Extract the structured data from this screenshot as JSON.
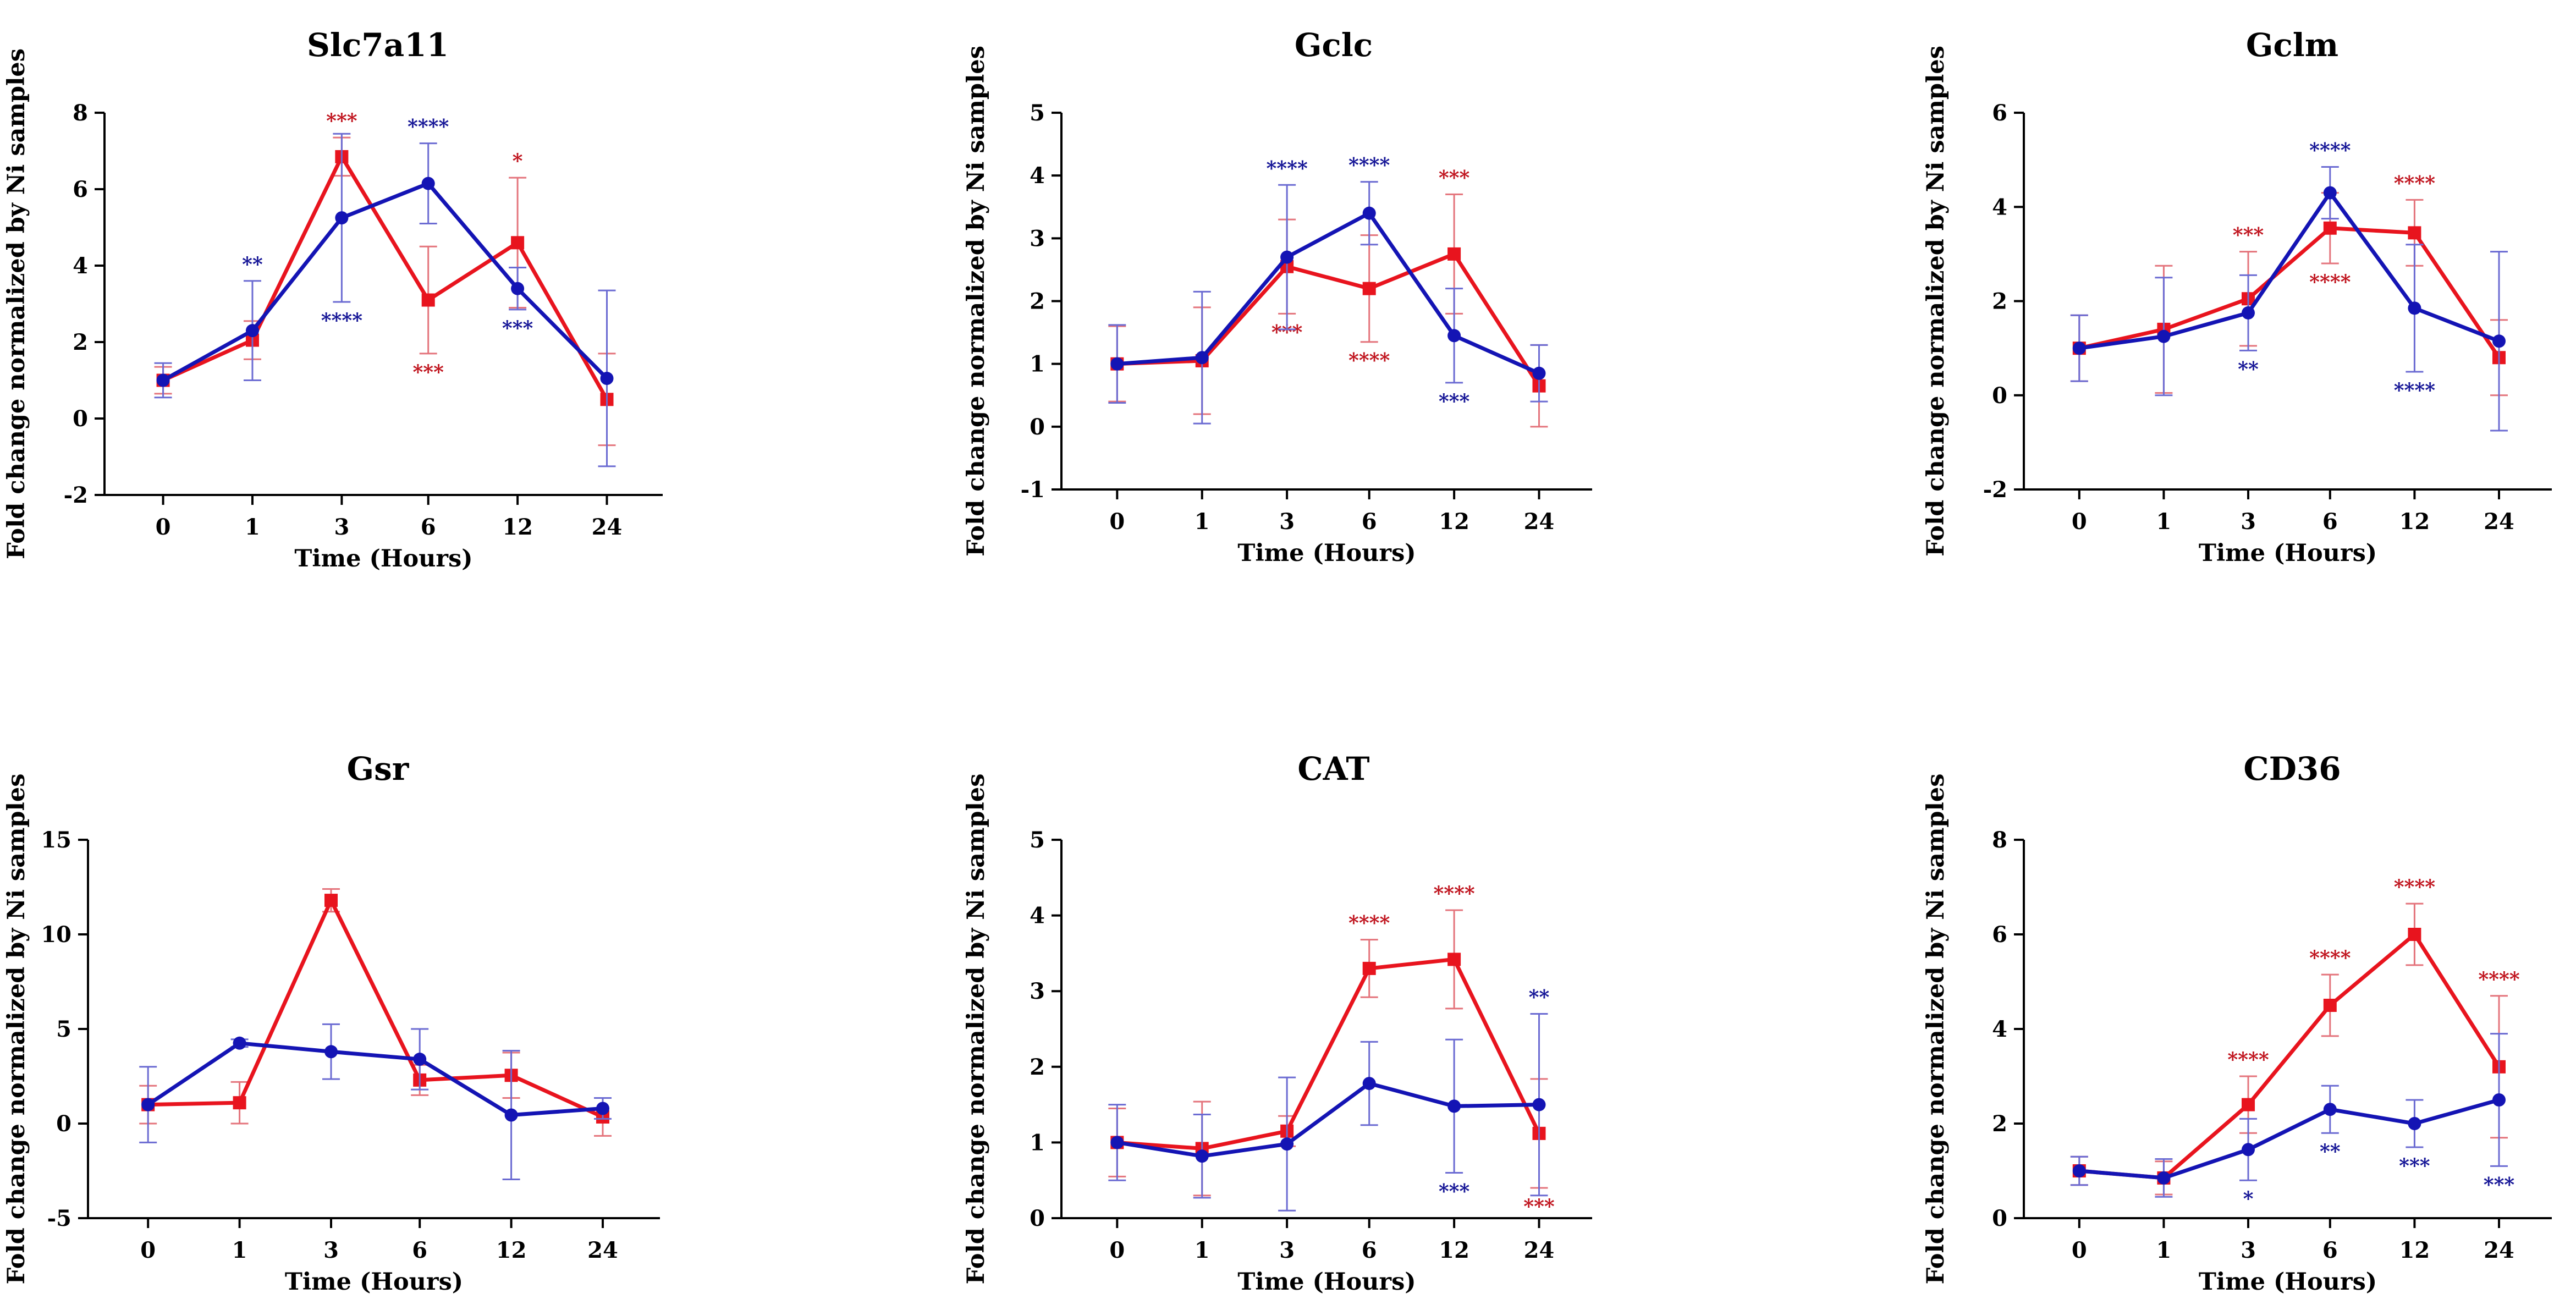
{
  "chart_data": [
    {
      "type": "line",
      "title": "Slc7a11",
      "xlabel": "Time (Hours)",
      "ylabel": "Fold change normalized by Ni samples",
      "categories": [
        "0",
        "1",
        "3",
        "6",
        "12",
        "24"
      ],
      "ylim": [
        -2,
        8
      ],
      "yticks": [
        -2,
        0,
        2,
        4,
        6,
        8
      ],
      "series": [
        {
          "name": "red",
          "marker": "square",
          "color": "#e8141e",
          "values": [
            1.0,
            2.05,
            6.85,
            3.1,
            4.6,
            0.5
          ],
          "errors": [
            0.35,
            0.5,
            0.5,
            1.4,
            1.7,
            1.2
          ],
          "sig": [
            "",
            "",
            "***",
            "***",
            "*",
            ""
          ],
          "sig_pos": [
            "",
            "",
            "above",
            "below",
            "above",
            ""
          ]
        },
        {
          "name": "blue",
          "marker": "circle",
          "color": "#1414b4",
          "values": [
            1.0,
            2.3,
            5.25,
            6.15,
            3.4,
            1.05
          ],
          "errors": [
            0.45,
            1.3,
            2.2,
            1.05,
            0.55,
            2.3
          ],
          "sig": [
            "",
            "**",
            "****",
            "****",
            "***",
            ""
          ],
          "sig_pos": [
            "",
            "above",
            "below",
            "above",
            "below",
            ""
          ]
        }
      ]
    },
    {
      "type": "line",
      "title": "Gclc",
      "xlabel": "Time (Hours)",
      "ylabel": "Fold change normalized by Ni samples",
      "categories": [
        "0",
        "1",
        "3",
        "6",
        "12",
        "24"
      ],
      "ylim": [
        -1,
        5
      ],
      "yticks": [
        -1,
        0,
        1,
        2,
        3,
        4,
        5
      ],
      "series": [
        {
          "name": "red",
          "marker": "square",
          "color": "#e8141e",
          "values": [
            1.0,
            1.05,
            2.55,
            2.2,
            2.75,
            0.65
          ],
          "errors": [
            0.6,
            0.85,
            0.75,
            0.85,
            0.95,
            0.65
          ],
          "sig": [
            "",
            "",
            "***",
            "****",
            "***",
            ""
          ],
          "sig_pos": [
            "",
            "",
            "below",
            "below",
            "above",
            ""
          ]
        },
        {
          "name": "blue",
          "marker": "circle",
          "color": "#1414b4",
          "values": [
            1.0,
            1.1,
            2.7,
            3.4,
            1.45,
            0.85
          ],
          "errors": [
            0.62,
            1.05,
            1.15,
            0.5,
            0.75,
            0.45
          ],
          "sig": [
            "",
            "",
            "****",
            "****",
            "***",
            ""
          ],
          "sig_pos": [
            "",
            "",
            "above",
            "above",
            "below",
            ""
          ]
        }
      ]
    },
    {
      "type": "line",
      "title": "Gclm",
      "xlabel": "Time (Hours)",
      "ylabel": "Fold change normalized by Ni samples",
      "categories": [
        "0",
        "1",
        "3",
        "6",
        "12",
        "24"
      ],
      "ylim": [
        -2,
        6
      ],
      "yticks": [
        -2,
        0,
        2,
        4,
        6
      ],
      "series": [
        {
          "name": "red",
          "marker": "square",
          "color": "#e8141e",
          "values": [
            1.0,
            1.4,
            2.05,
            3.55,
            3.45,
            0.8
          ],
          "errors": [
            0.7,
            1.35,
            1.0,
            0.75,
            0.7,
            0.8
          ],
          "sig": [
            "",
            "",
            "***",
            "****",
            "****",
            ""
          ],
          "sig_pos": [
            "",
            "",
            "above",
            "below",
            "above",
            ""
          ]
        },
        {
          "name": "blue",
          "marker": "circle",
          "color": "#1414b4",
          "values": [
            1.0,
            1.25,
            1.75,
            4.3,
            1.85,
            1.15
          ],
          "errors": [
            0.7,
            1.25,
            0.8,
            0.55,
            1.35,
            1.9
          ],
          "sig": [
            "",
            "",
            "**",
            "****",
            "****",
            ""
          ],
          "sig_pos": [
            "",
            "",
            "below",
            "above",
            "below",
            ""
          ]
        }
      ]
    },
    {
      "type": "line",
      "title": "Gsr",
      "xlabel": "Time (Hours)",
      "ylabel": "Fold change normalized by Ni samples",
      "categories": [
        "0",
        "1",
        "3",
        "6",
        "12",
        "24"
      ],
      "ylim": [
        -5,
        15
      ],
      "yticks": [
        -5,
        0,
        5,
        10,
        15
      ],
      "series": [
        {
          "name": "red",
          "marker": "square",
          "color": "#e8141e",
          "values": [
            1.0,
            1.1,
            11.8,
            2.3,
            2.55,
            0.35
          ],
          "errors": [
            1.0,
            1.1,
            0.6,
            0.8,
            1.2,
            1.0
          ],
          "sig": [
            "",
            "",
            "",
            "",
            "",
            ""
          ],
          "sig_pos": [
            "",
            "",
            "",
            "",
            "",
            ""
          ]
        },
        {
          "name": "blue",
          "marker": "circle",
          "color": "#1414b4",
          "values": [
            1.0,
            4.25,
            3.8,
            3.4,
            0.45,
            0.8
          ],
          "errors": [
            2.0,
            0.2,
            1.45,
            1.6,
            3.4,
            0.55
          ],
          "sig": [
            "",
            "",
            "",
            "",
            "",
            ""
          ],
          "sig_pos": [
            "",
            "",
            "",
            "",
            "",
            ""
          ]
        }
      ]
    },
    {
      "type": "line",
      "title": "CAT",
      "xlabel": "Time (Hours)",
      "ylabel": "Fold change normalized by Ni samples",
      "categories": [
        "0",
        "1",
        "3",
        "6",
        "12",
        "24"
      ],
      "ylim": [
        0,
        5
      ],
      "yticks": [
        0,
        1,
        2,
        3,
        4,
        5
      ],
      "series": [
        {
          "name": "red",
          "marker": "square",
          "color": "#e8141e",
          "values": [
            1.0,
            0.92,
            1.15,
            3.3,
            3.42,
            1.12
          ],
          "errors": [
            0.45,
            0.62,
            0.2,
            0.38,
            0.65,
            0.72
          ],
          "sig": [
            "",
            "",
            "",
            "****",
            "****",
            "***"
          ],
          "sig_pos": [
            "",
            "",
            "",
            "above",
            "above",
            "below"
          ]
        },
        {
          "name": "blue",
          "marker": "circle",
          "color": "#1414b4",
          "values": [
            1.0,
            0.82,
            0.98,
            1.78,
            1.48,
            1.5
          ],
          "errors": [
            0.5,
            0.55,
            0.88,
            0.55,
            0.88,
            1.2
          ],
          "sig": [
            "",
            "",
            "",
            "",
            "***",
            "**"
          ],
          "sig_pos": [
            "",
            "",
            "",
            "",
            "below",
            "above"
          ]
        }
      ]
    },
    {
      "type": "line",
      "title": "CD36",
      "xlabel": "Time (Hours)",
      "ylabel": "Fold change normalized by Ni samples",
      "categories": [
        "0",
        "1",
        "3",
        "6",
        "12",
        "24"
      ],
      "ylim": [
        0,
        8
      ],
      "yticks": [
        0,
        2,
        4,
        6,
        8
      ],
      "series": [
        {
          "name": "red",
          "marker": "square",
          "color": "#e8141e",
          "values": [
            1.0,
            0.85,
            2.4,
            4.5,
            6.0,
            3.2
          ],
          "errors": [
            0.3,
            0.35,
            0.6,
            0.65,
            0.65,
            1.5
          ],
          "sig": [
            "",
            "",
            "****",
            "****",
            "****",
            "****"
          ],
          "sig_pos": [
            "",
            "",
            "above",
            "above",
            "above",
            "above"
          ]
        },
        {
          "name": "blue",
          "marker": "circle",
          "color": "#1414b4",
          "values": [
            1.0,
            0.85,
            1.45,
            2.3,
            2.0,
            2.5
          ],
          "errors": [
            0.3,
            0.4,
            0.65,
            0.5,
            0.5,
            1.4
          ],
          "sig": [
            "",
            "",
            "*",
            "**",
            "***",
            "***"
          ],
          "sig_pos": [
            "",
            "",
            "below",
            "below",
            "below",
            "below"
          ]
        }
      ]
    }
  ]
}
